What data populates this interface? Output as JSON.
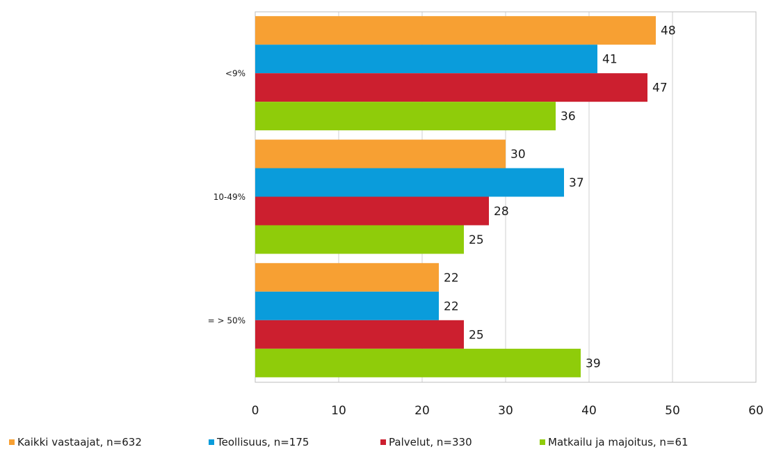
{
  "chart_data": {
    "type": "bar",
    "orientation": "horizontal",
    "title": "",
    "xlabel": "",
    "ylabel": "",
    "categories": [
      "<9%",
      "10-49%",
      "= > 50%"
    ],
    "xlim": [
      0,
      60
    ],
    "x_ticks": [
      "0",
      "10",
      "20",
      "30",
      "40",
      "50",
      "60"
    ],
    "grid": "vertical",
    "legend_position": "bottom",
    "series": [
      {
        "name": "Kaikki vastaajat, n=632",
        "color": "#F7A033",
        "values": [
          48,
          30,
          22
        ]
      },
      {
        "name": "Teollisuus, n=175",
        "color": "#0A9CDB",
        "values": [
          41,
          37,
          22
        ]
      },
      {
        "name": "Palvelut, n=330",
        "color": "#CC1F2F",
        "values": [
          47,
          28,
          25
        ]
      },
      {
        "name": "Matkailu ja majoitus, n=61",
        "color": "#8FCC0A",
        "values": [
          36,
          25,
          39
        ]
      }
    ]
  }
}
